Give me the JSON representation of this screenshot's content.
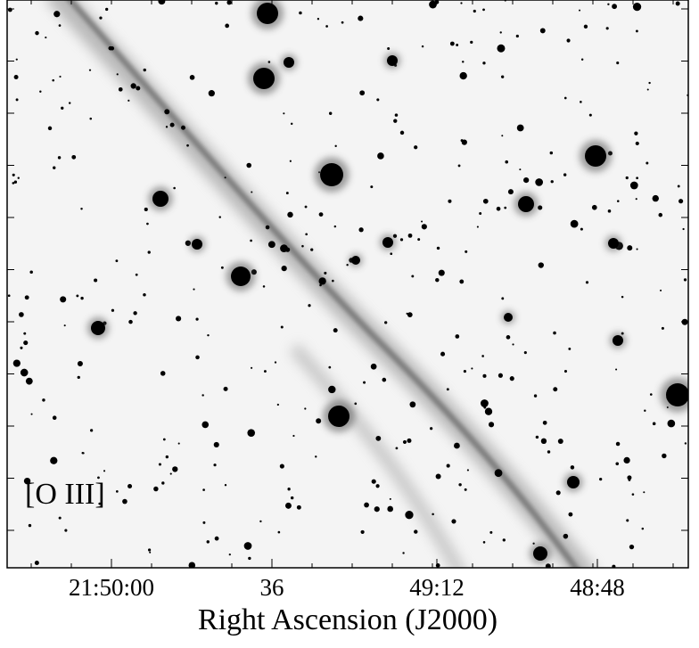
{
  "image": {
    "label": "[O III]"
  },
  "x_axis": {
    "title": "Right Ascension (J2000)",
    "tick_labels": [
      "21:50:00",
      "36",
      "49:12",
      "48:48"
    ]
  }
}
